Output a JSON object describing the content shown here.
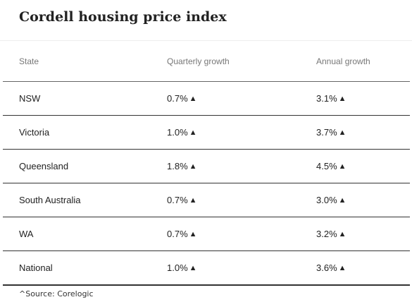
{
  "title": "Cordell housing price index",
  "source": "^Source: Corelogic",
  "chart_data": {
    "type": "table",
    "title": "Cordell housing price index",
    "columns": [
      "State",
      "Quarterly growth",
      "Annual growth"
    ],
    "rows": [
      {
        "state": "NSW",
        "quarterly": "0.7%",
        "annual": "3.1%",
        "quarterly_value": 0.7,
        "annual_value": 3.1,
        "trend": "up"
      },
      {
        "state": "Victoria",
        "quarterly": "1.0%",
        "annual": "3.7%",
        "quarterly_value": 1.0,
        "annual_value": 3.7,
        "trend": "up"
      },
      {
        "state": "Queensland",
        "quarterly": "1.8%",
        "annual": "4.5%",
        "quarterly_value": 1.8,
        "annual_value": 4.5,
        "trend": "up"
      },
      {
        "state": "South Australia",
        "quarterly": "0.7%",
        "annual": "3.0%",
        "quarterly_value": 0.7,
        "annual_value": 3.0,
        "trend": "up"
      },
      {
        "state": "WA",
        "quarterly": "0.7%",
        "annual": "3.2%",
        "quarterly_value": 0.7,
        "annual_value": 3.2,
        "trend": "up"
      },
      {
        "state": "National",
        "quarterly": "1.0%",
        "annual": "3.6%",
        "quarterly_value": 1.0,
        "annual_value": 3.6,
        "trend": "up"
      }
    ],
    "trend_icon": "up-triangle-icon",
    "trend_glyph": "▲"
  }
}
